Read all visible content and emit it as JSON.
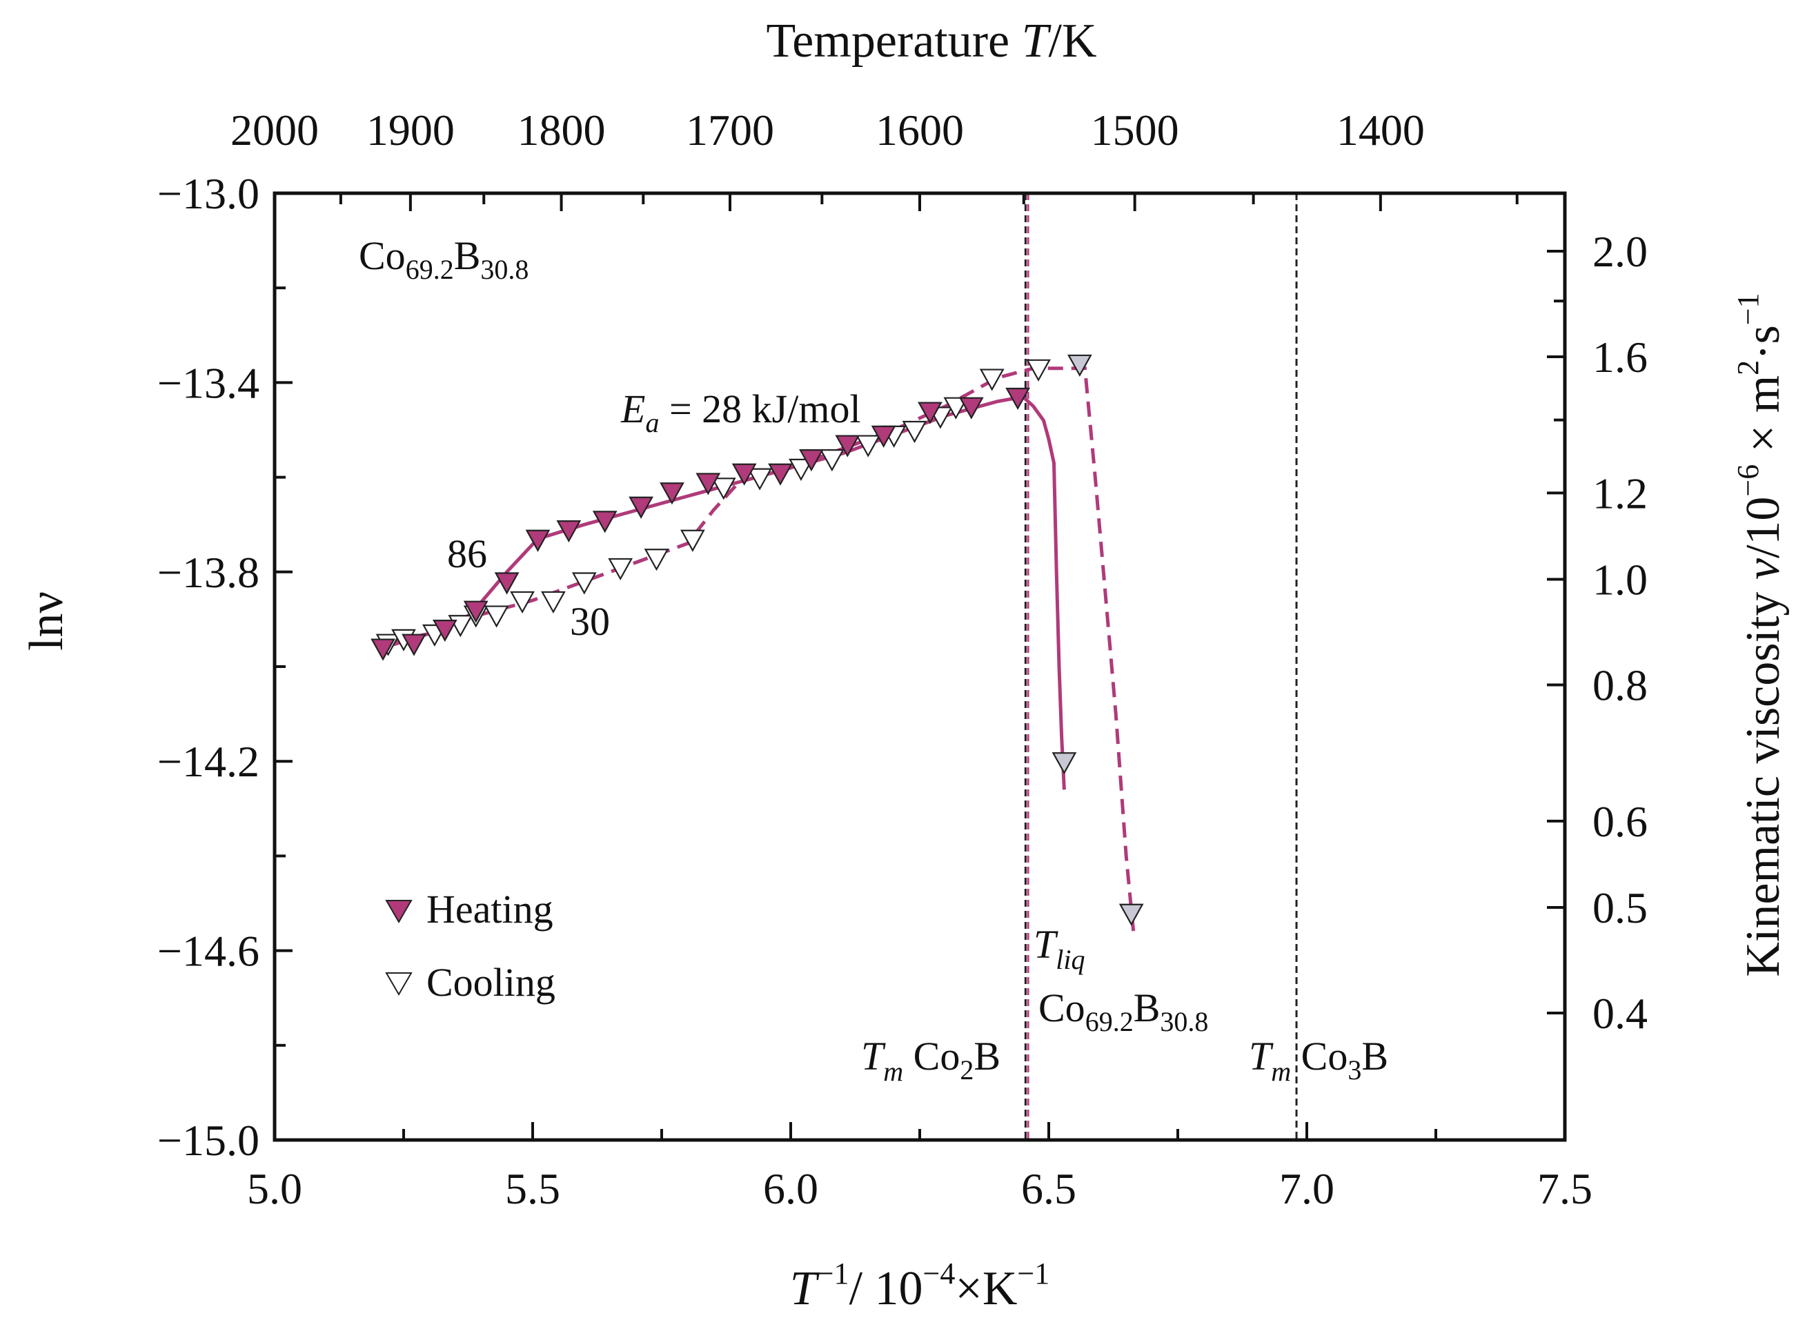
{
  "chart_data": {
    "type": "scatter",
    "title": "",
    "annotation_alloy": {
      "base": "Co",
      "sub1": "69.2",
      "mid": "B",
      "sub2": "30.8"
    },
    "activation_energy": {
      "sym": "E",
      "sub": "a",
      "rest": " = 28 kJ/mol"
    },
    "rate_labels": {
      "heating": "86",
      "cooling": "30"
    },
    "xlabel": {
      "a": "T",
      "a_sup": "−1",
      "b": "/ 10",
      "b_sup": "−4",
      "c": "×K",
      "c_sup": "−1"
    },
    "ylabel": "lnν",
    "top_label": {
      "a": "Temperature ",
      "b": "T",
      "c": "/K"
    },
    "right_label": {
      "a": "Kinematic viscosity ",
      "b": "ν",
      "c": "/10",
      "c_sup": "−6",
      "d": " × m",
      "d_sup": "2",
      "e": "·s",
      "e_sup": "−1"
    },
    "x_range": [
      5.0,
      7.5
    ],
    "y_range": [
      -15.0,
      -13.0
    ],
    "x_ticks": [
      "5.0",
      "5.5",
      "6.0",
      "6.5",
      "7.0",
      "7.5"
    ],
    "y_ticks": [
      "−13.0",
      "−13.4",
      "−13.8",
      "−14.2",
      "−14.6",
      "−15.0"
    ],
    "top_ticks": [
      "2000",
      "1900",
      "1800",
      "1700",
      "1600",
      "1500",
      "1400"
    ],
    "top_tick_values_K": [
      2000,
      1900,
      1800,
      1700,
      1600,
      1500,
      1400
    ],
    "right_ticks": [
      "2.0",
      "1.6",
      "1.2",
      "1.0",
      "0.8",
      "0.6",
      "0.5",
      "0.4"
    ],
    "right_tick_values": [
      2.0,
      1.6,
      1.2,
      1.0,
      0.8,
      0.6,
      0.5,
      0.4
    ],
    "ref_lines": [
      {
        "x": 6.46,
        "name": "Tliq Co69.2B30.8",
        "color": "#c0387f"
      },
      {
        "x": 6.455,
        "name": "Tm Co2B",
        "color": "#222222"
      },
      {
        "x": 6.98,
        "name": "Tm Co3B",
        "color": "#222222"
      }
    ],
    "ref_labels": {
      "tliq": {
        "sym": "T",
        "sub": "liq",
        "base": "Co",
        "sub1": "69.2",
        "mid": "B",
        "sub2": "30.8"
      },
      "co2b": {
        "sym": "T",
        "sub": "m",
        "a": " Co",
        "a_sub": "2",
        "b": "B"
      },
      "co3b": {
        "sym": "T",
        "sub": "m",
        "a": " Co",
        "a_sub": "3",
        "b": "B"
      }
    },
    "legend": [
      {
        "label": "Heating",
        "marker": "filled-triangle-down"
      },
      {
        "label": "Cooling",
        "marker": "open-triangle-down"
      }
    ],
    "colors": {
      "heating": "#b03a7a",
      "cooling_fill": "#ffffff",
      "undercooled_fill": "#c9c9d6",
      "axis": "#111111"
    },
    "series": [
      {
        "name": "Heating",
        "x": [
          5.21,
          5.27,
          5.33,
          5.39,
          5.45,
          5.51,
          5.57,
          5.64,
          5.71,
          5.77,
          5.84,
          5.91,
          5.98,
          6.04,
          6.11,
          6.18,
          6.27,
          6.35,
          6.44
        ],
        "y": [
          -13.96,
          -13.95,
          -13.92,
          -13.88,
          -13.82,
          -13.73,
          -13.71,
          -13.69,
          -13.66,
          -13.63,
          -13.61,
          -13.59,
          -13.59,
          -13.56,
          -13.53,
          -13.51,
          -13.46,
          -13.45,
          -13.43
        ]
      },
      {
        "name": "Cooling",
        "x": [
          5.22,
          5.25,
          5.31,
          5.36,
          5.39,
          5.43,
          5.48,
          5.54,
          5.6,
          5.67,
          5.74,
          5.81,
          5.87,
          5.94,
          6.02,
          6.08,
          6.15,
          6.2,
          6.24,
          6.29,
          6.32,
          6.39,
          6.48
        ],
        "y": [
          -13.95,
          -13.94,
          -13.93,
          -13.91,
          -13.89,
          -13.89,
          -13.86,
          -13.86,
          -13.82,
          -13.79,
          -13.77,
          -13.73,
          -13.62,
          -13.6,
          -13.58,
          -13.56,
          -13.53,
          -13.51,
          -13.5,
          -13.47,
          -13.45,
          -13.39,
          -13.37
        ]
      },
      {
        "name": "Undercooled",
        "x": [
          6.53,
          6.56,
          6.66
        ],
        "y": [
          -14.2,
          -13.36,
          -14.52
        ]
      }
    ],
    "fit_heating": {
      "x": [
        5.21,
        5.3,
        5.38,
        5.45,
        5.51,
        5.6,
        5.7,
        5.8,
        5.9,
        6.0,
        6.1,
        6.2,
        6.3,
        6.4,
        6.45,
        6.47,
        6.49,
        6.5,
        6.51,
        6.515,
        6.52,
        6.525,
        6.53
      ],
      "y": [
        -13.96,
        -13.93,
        -13.89,
        -13.8,
        -13.73,
        -13.7,
        -13.67,
        -13.64,
        -13.61,
        -13.58,
        -13.55,
        -13.51,
        -13.47,
        -13.44,
        -13.43,
        -13.45,
        -13.48,
        -13.52,
        -13.57,
        -13.8,
        -14.0,
        -14.15,
        -14.26
      ]
    },
    "fit_cooling": {
      "x": [
        5.22,
        5.3,
        5.4,
        5.5,
        5.6,
        5.7,
        5.8,
        5.85,
        5.9,
        6.0,
        6.1,
        6.2,
        6.3,
        6.4,
        6.47,
        6.53,
        6.57,
        6.59,
        6.61,
        6.63,
        6.65,
        6.665
      ],
      "y": [
        -13.95,
        -13.93,
        -13.89,
        -13.86,
        -13.82,
        -13.78,
        -13.74,
        -13.67,
        -13.61,
        -13.58,
        -13.54,
        -13.5,
        -13.45,
        -13.39,
        -13.37,
        -13.37,
        -13.37,
        -13.6,
        -13.85,
        -14.1,
        -14.4,
        -14.57
      ]
    }
  }
}
